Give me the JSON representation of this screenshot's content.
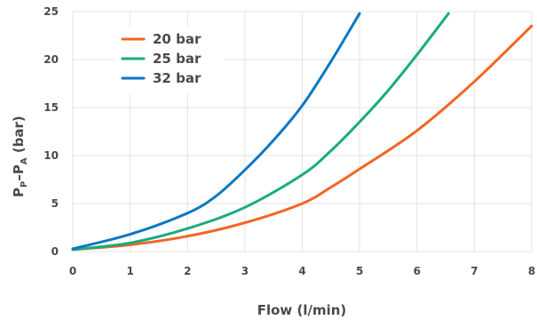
{
  "chart_data": {
    "type": "line",
    "title": "",
    "xlabel": "Flow (l/min)",
    "ylabel_main": "P",
    "ylabel_sub1": "P",
    "ylabel_mid": "–P",
    "ylabel_sub2": "A",
    "ylabel_tail": " (bar)",
    "xlim": [
      0,
      8
    ],
    "ylim": [
      0,
      25
    ],
    "xticks": [
      "0",
      "1",
      "2",
      "3",
      "4",
      "5",
      "6",
      "7",
      "8"
    ],
    "yticks": [
      "0",
      "5",
      "10",
      "15",
      "20",
      "25"
    ],
    "grid": true,
    "legend_position": "top-left",
    "series": [
      {
        "name": "20 bar",
        "color": "#f26522",
        "points": [
          [
            0,
            0.2
          ],
          [
            1,
            0.7
          ],
          [
            2,
            1.6
          ],
          [
            3,
            3.0
          ],
          [
            4,
            5.0
          ],
          [
            4.5,
            6.7
          ],
          [
            5,
            8.6
          ],
          [
            6,
            12.6
          ],
          [
            7,
            17.7
          ],
          [
            8,
            23.5
          ]
        ]
      },
      {
        "name": "25 bar",
        "color": "#1aab7e",
        "points": [
          [
            0,
            0.2
          ],
          [
            1,
            0.9
          ],
          [
            2,
            2.4
          ],
          [
            3,
            4.6
          ],
          [
            4,
            8.0
          ],
          [
            4.5,
            10.5
          ],
          [
            5,
            13.5
          ],
          [
            5.5,
            16.8
          ],
          [
            6,
            20.5
          ],
          [
            6.55,
            24.8
          ]
        ]
      },
      {
        "name": "32 bar",
        "color": "#0a77c4",
        "points": [
          [
            0,
            0.3
          ],
          [
            1,
            1.8
          ],
          [
            2,
            4.0
          ],
          [
            2.5,
            5.8
          ],
          [
            3,
            8.5
          ],
          [
            3.5,
            11.6
          ],
          [
            4,
            15.2
          ],
          [
            4.5,
            19.8
          ],
          [
            5,
            24.8
          ]
        ]
      }
    ]
  }
}
